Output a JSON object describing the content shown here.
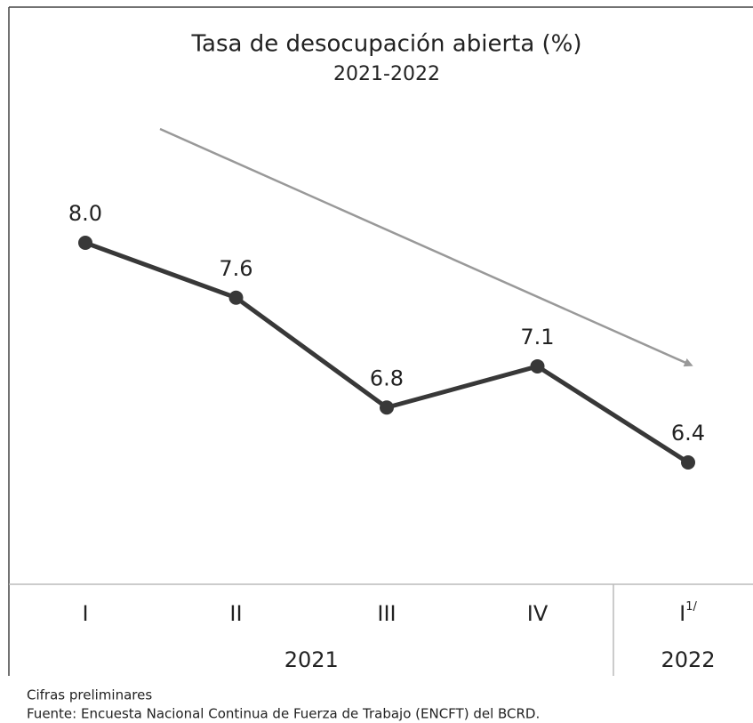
{
  "chart_data": {
    "type": "line",
    "title": "Tasa de desocupación abierta (%)",
    "subtitle": "2021-2022",
    "categories": [
      "I",
      "II",
      "III",
      "IV",
      "I"
    ],
    "category_notes": [
      null,
      null,
      null,
      null,
      "1/"
    ],
    "years": [
      "2021",
      "2021",
      "2021",
      "2021",
      "2022"
    ],
    "series": [
      {
        "name": "Tasa de desocupación abierta",
        "color": "#383838",
        "values": [
          8.0,
          7.6,
          6.8,
          7.1,
          6.4
        ],
        "value_labels": [
          "8.0",
          "7.6",
          "6.8",
          "7.1",
          "6.4"
        ]
      }
    ],
    "note": "Cifras preliminares",
    "source": "Fuente: Encuesta Nacional Continua de Fuerza de Trabajo (ENCFT) del BCRD."
  }
}
